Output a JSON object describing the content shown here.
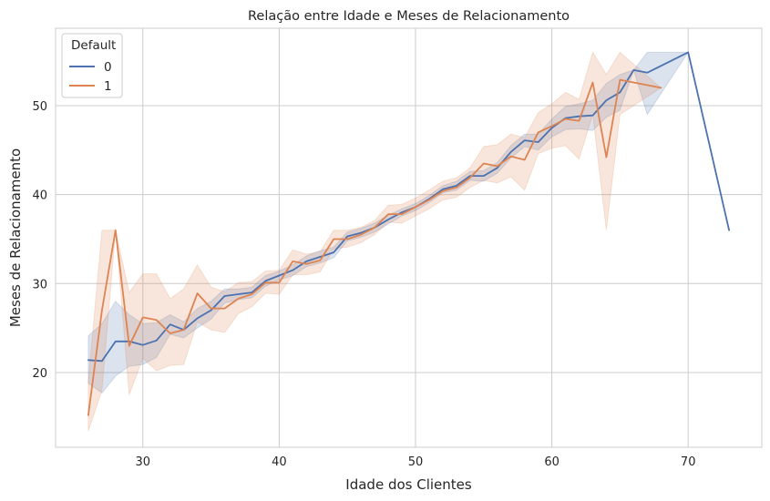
{
  "chart_data": {
    "type": "line",
    "title": "Relação entre Idade e Meses de Relacionamento",
    "xlabel": "Idade dos Clientes",
    "ylabel": "Meses de Relacionamento",
    "xlim": [
      23.6,
      75.4
    ],
    "ylim": [
      11.6,
      58.7
    ],
    "xticks": [
      30,
      40,
      50,
      60,
      70
    ],
    "yticks": [
      20,
      30,
      40,
      50
    ],
    "grid": true,
    "legend": {
      "title": "Default",
      "position": "top-left"
    },
    "series": [
      {
        "name": "0",
        "color": "#4c72b0",
        "x": [
          26,
          27,
          28,
          29,
          30,
          31,
          32,
          33,
          34,
          35,
          36,
          37,
          38,
          39,
          40,
          41,
          42,
          43,
          44,
          45,
          46,
          47,
          48,
          49,
          50,
          51,
          52,
          53,
          54,
          55,
          56,
          57,
          58,
          59,
          60,
          61,
          62,
          63,
          64,
          65,
          66,
          67,
          70,
          73
        ],
        "y": [
          21.4,
          21.3,
          23.5,
          23.5,
          23.1,
          23.6,
          25.4,
          24.8,
          26.1,
          27.0,
          28.6,
          28.8,
          29.0,
          30.3,
          30.9,
          31.5,
          32.5,
          33.0,
          33.5,
          35.3,
          35.7,
          36.3,
          37.2,
          38.0,
          38.6,
          39.5,
          40.6,
          41.0,
          42.1,
          42.1,
          43.0,
          44.8,
          46.1,
          45.9,
          47.5,
          48.6,
          48.8,
          48.9,
          50.6,
          51.5,
          54.0,
          53.7,
          56.0,
          36.0
        ],
        "ci_upper": [
          24.1,
          25.5,
          28.0,
          26.5,
          25.5,
          25.6,
          26.5,
          25.7,
          27.2,
          28.0,
          29.4,
          29.4,
          29.6,
          30.9,
          31.4,
          32.1,
          33.1,
          33.7,
          34.1,
          35.8,
          36.2,
          36.8,
          37.7,
          38.4,
          39.0,
          39.9,
          41.0,
          41.5,
          42.6,
          42.7,
          43.6,
          45.5,
          46.8,
          46.8,
          48.5,
          49.9,
          50.2,
          50.6,
          52.5,
          53.5,
          54.0,
          56.0,
          56.0,
          36.0
        ],
        "ci_lower": [
          18.8,
          17.7,
          19.6,
          20.7,
          20.9,
          21.7,
          24.3,
          23.9,
          25.0,
          26.0,
          27.8,
          28.2,
          28.4,
          29.7,
          30.4,
          30.9,
          31.9,
          32.3,
          32.9,
          34.8,
          35.2,
          35.8,
          36.7,
          37.6,
          38.2,
          39.1,
          40.2,
          40.5,
          41.6,
          41.5,
          42.4,
          44.1,
          45.4,
          45.0,
          46.5,
          47.3,
          47.4,
          47.2,
          48.7,
          49.5,
          54.0,
          49.0,
          56.0,
          36.0
        ]
      },
      {
        "name": "1",
        "color": "#dd8452",
        "x": [
          26,
          27,
          28,
          29,
          30,
          31,
          32,
          33,
          34,
          35,
          36,
          37,
          38,
          39,
          40,
          41,
          42,
          43,
          44,
          45,
          46,
          47,
          48,
          49,
          50,
          51,
          52,
          53,
          54,
          55,
          56,
          57,
          58,
          59,
          60,
          61,
          62,
          63,
          64,
          65,
          68
        ],
        "y": [
          15.2,
          27.0,
          36.0,
          23.0,
          26.2,
          25.9,
          24.4,
          24.8,
          28.9,
          27.2,
          27.2,
          28.3,
          28.8,
          30.1,
          30.1,
          32.5,
          32.2,
          32.6,
          35.0,
          35.0,
          35.5,
          36.3,
          37.8,
          37.8,
          38.6,
          39.4,
          40.4,
          40.8,
          41.9,
          43.5,
          43.2,
          44.3,
          43.9,
          47.0,
          47.7,
          48.5,
          48.3,
          52.6,
          44.2,
          52.9,
          52.0
        ],
        "ci_upper": [
          19.0,
          36.0,
          36.0,
          29.0,
          31.1,
          31.1,
          28.3,
          29.4,
          32.1,
          29.6,
          29.1,
          30.1,
          30.2,
          31.4,
          31.5,
          33.8,
          33.3,
          33.6,
          36.0,
          36.0,
          36.3,
          37.1,
          38.8,
          38.9,
          39.6,
          40.5,
          41.5,
          41.9,
          43.0,
          45.4,
          45.6,
          46.8,
          46.4,
          49.2,
          50.2,
          51.5,
          50.7,
          56.0,
          53.5,
          56.0,
          52.0
        ],
        "ci_lower": [
          13.4,
          18.0,
          36.0,
          17.5,
          21.6,
          20.2,
          20.8,
          20.9,
          25.7,
          24.8,
          24.5,
          26.6,
          27.4,
          28.9,
          28.8,
          31.0,
          31.0,
          31.3,
          33.9,
          34.1,
          34.6,
          35.5,
          36.9,
          36.8,
          37.6,
          38.4,
          39.4,
          39.7,
          40.8,
          41.6,
          41.3,
          42.0,
          40.5,
          44.6,
          45.2,
          45.5,
          44.0,
          49.0,
          36.0,
          49.0,
          52.0
        ]
      }
    ]
  }
}
